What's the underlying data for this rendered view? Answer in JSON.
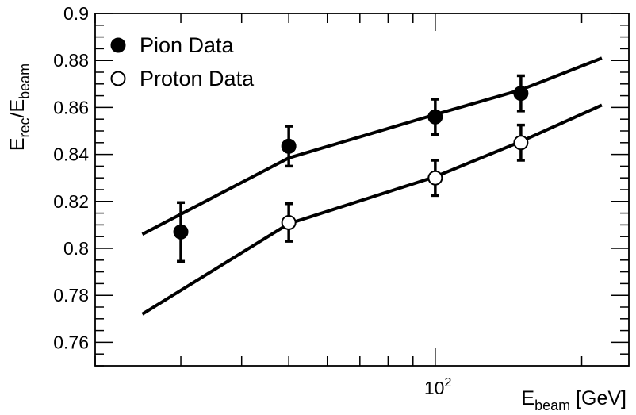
{
  "chart_data": {
    "type": "scatter",
    "x_scale": "log",
    "xlim": [
      20,
      250
    ],
    "ylim": [
      0.75,
      0.9
    ],
    "y_ticks": [
      0.76,
      0.78,
      0.8,
      0.82,
      0.84,
      0.86,
      0.88,
      0.9
    ],
    "y_tick_labels": [
      "0.76",
      "0.78",
      "0.8",
      "0.82",
      "0.84",
      "0.86",
      "0.88",
      "0.9"
    ],
    "x_tick_labels": [
      {
        "value": 100,
        "base": "10",
        "exp": "2"
      }
    ],
    "xlabel": {
      "main": "E",
      "sub": "beam",
      "unit": " [GeV]"
    },
    "ylabel": {
      "a": "E",
      "a_sub": "rec",
      "sep": "/E",
      "b_sub": "beam"
    },
    "legend": {
      "position": "top-left"
    },
    "series": [
      {
        "name": "Pion Data",
        "marker": "filled-circle",
        "x": [
          30,
          50,
          100,
          150
        ],
        "y": [
          0.807,
          0.8435,
          0.856,
          0.866
        ],
        "err": [
          0.0125,
          0.0085,
          0.0075,
          0.0075
        ],
        "fit": {
          "x": [
            25,
            50,
            100,
            150,
            220
          ],
          "y": [
            0.806,
            0.8385,
            0.857,
            0.8675,
            0.881
          ]
        }
      },
      {
        "name": "Proton Data",
        "marker": "open-circle",
        "x": [
          50,
          100,
          150
        ],
        "y": [
          0.811,
          0.83,
          0.845
        ],
        "err": [
          0.008,
          0.0075,
          0.0075
        ],
        "fit": {
          "x": [
            25,
            50,
            100,
            150,
            220
          ],
          "y": [
            0.772,
            0.8105,
            0.8305,
            0.8455,
            0.861
          ]
        }
      }
    ]
  }
}
